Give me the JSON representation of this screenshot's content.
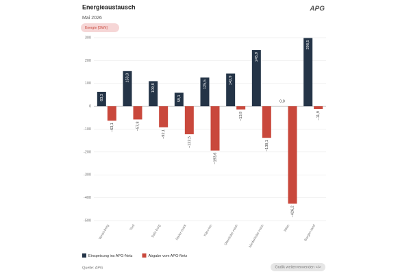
{
  "chart_data": {
    "type": "bar",
    "title": "Energieaustausch",
    "subtitle": "Mai 2026",
    "logo": "APG",
    "unit_label": "Energie [GWh]",
    "source": "Quelle: APG",
    "button": "Grafik weiterverwenden </>",
    "categories": [
      "Vorarl-berg",
      "Tirol",
      "Salz-burg",
      "Steier-mark",
      "Kärn-ten",
      "Oberöster-reich",
      "Niederöster-reich",
      "Wien",
      "Burgen-land"
    ],
    "series": [
      {
        "name": "Einspeisung ins APG-Netz",
        "color": "#243447",
        "values": [
          63.3,
          153.8,
          109.8,
          59.1,
          125.5,
          142.9,
          245.9,
          0.0,
          298.5
        ],
        "value_labels": [
          "63,3",
          "153,8",
          "109,8",
          "59,1",
          "125,5",
          "142,9",
          "245,9",
          "0,0",
          "298,5"
        ]
      },
      {
        "name": "Abgabe vom APG-Netz",
        "color": "#c9483c",
        "values": [
          -63.1,
          -57.8,
          -92.1,
          -122.5,
          -193.6,
          -13.9,
          -138.1,
          -426.2,
          -11.9
        ],
        "value_labels": [
          "−63,1",
          "−57,8",
          "−92,1",
          "−122,5",
          "−193,6",
          "−13,9",
          "−138,1",
          "−426,2",
          "−11,9"
        ]
      }
    ],
    "ylim": [
      -500,
      300
    ],
    "yticks": [
      300,
      200,
      100,
      0,
      -100,
      -200,
      -300,
      -400,
      -500
    ],
    "grid": true
  }
}
